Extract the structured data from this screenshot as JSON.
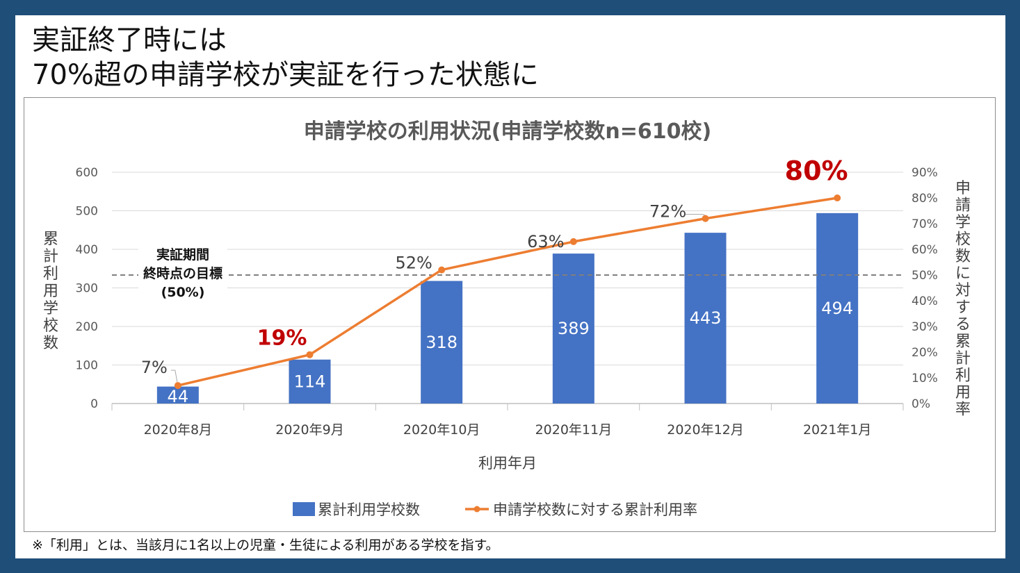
{
  "slide": {
    "title_line1": "実証終了時には",
    "title_line2": "70%超の申請学校が実証を行った状態に",
    "footnote": "※「利用」とは、当該月に1名以上の児童・生徒による利用がある学校を指す。"
  },
  "colors": {
    "background": "#1f4e79",
    "bar": "#4472c4",
    "line": "#ed7d31",
    "highlight": "#c00000",
    "target_line": "#7f7f7f"
  },
  "chart_data": {
    "type": "bar",
    "title": "申請学校の利用状況(申請学校数n=610校)",
    "categories": [
      "2020年8月",
      "2020年9月",
      "2020年10月",
      "2020年11月",
      "2020年12月",
      "2021年1月"
    ],
    "series": [
      {
        "name": "累計利用学校数",
        "type": "bar",
        "axis": "left",
        "values": [
          44,
          114,
          318,
          389,
          443,
          494
        ]
      },
      {
        "name": "申請学校数に対する累計利用率",
        "type": "line",
        "axis": "right",
        "values": [
          7,
          19,
          52,
          63,
          72,
          80
        ]
      }
    ],
    "point_labels": [
      "7%",
      "19%",
      "52%",
      "63%",
      "72%",
      "80%"
    ],
    "highlighted_points": [
      1,
      5
    ],
    "xlabel": "利用年月",
    "ylabel_left": "累計利用学校数",
    "ylabel_right": "申請学校数に対する累計利用率",
    "ylim_left": [
      0,
      600
    ],
    "yticks_left": [
      0,
      100,
      200,
      300,
      400,
      500,
      600
    ],
    "ylim_right": [
      0,
      90
    ],
    "yticks_right": [
      "0%",
      "10%",
      "20%",
      "30%",
      "40%",
      "50%",
      "60%",
      "70%",
      "80%",
      "90%"
    ],
    "target": {
      "value": 50,
      "axis": "right",
      "label_lines": [
        "実証期間",
        "終時点の目標",
        "(50%)"
      ]
    },
    "grid": true,
    "legend_position": "bottom"
  }
}
